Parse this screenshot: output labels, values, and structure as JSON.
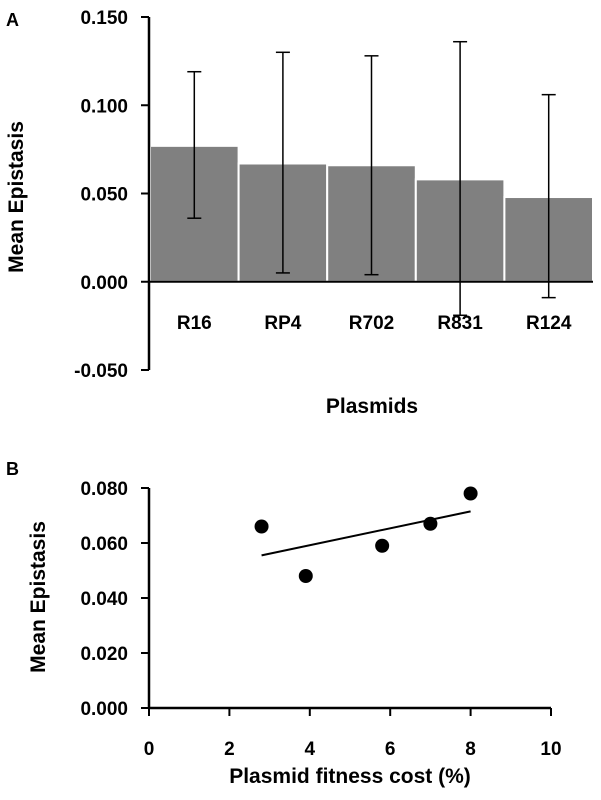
{
  "chart_data": [
    {
      "panel": "A",
      "type": "bar",
      "categories": [
        "R16",
        "RP4",
        "R702",
        "R831",
        "R124"
      ],
      "values": [
        0.077,
        0.067,
        0.066,
        0.058,
        0.048
      ],
      "error_bars": {
        "upper": [
          0.119,
          0.13,
          0.128,
          0.136,
          0.106
        ],
        "lower": [
          0.036,
          0.005,
          0.004,
          -0.019,
          -0.009
        ]
      },
      "xlabel": "Plasmids",
      "ylabel": "Mean Epistasis",
      "ylim": [
        -0.05,
        0.15
      ],
      "yticks": [
        "-0.050",
        "0.000",
        "0.050",
        "0.100",
        "0.150"
      ],
      "colors": {
        "bar": "#808080",
        "bar_edge": "#ffffff",
        "axis": "#000000"
      },
      "grid": false
    },
    {
      "panel": "B",
      "type": "scatter",
      "x": [
        2.8,
        3.9,
        5.8,
        7.0,
        8.0
      ],
      "y": [
        0.066,
        0.048,
        0.059,
        0.067,
        0.078
      ],
      "trendline": {
        "x": [
          2.8,
          8.0
        ],
        "y": [
          0.0555,
          0.0715
        ]
      },
      "xlabel": "Plasmid fitness cost (%)",
      "ylabel": "Mean Epistasis",
      "xlim": [
        0,
        10
      ],
      "ylim": [
        0,
        0.08
      ],
      "xticks": [
        "0",
        "2",
        "4",
        "6",
        "8",
        "10"
      ],
      "yticks": [
        "0.000",
        "0.020",
        "0.040",
        "0.060",
        "0.080"
      ],
      "colors": {
        "point": "#000000",
        "line": "#000000"
      },
      "grid": false
    }
  ]
}
